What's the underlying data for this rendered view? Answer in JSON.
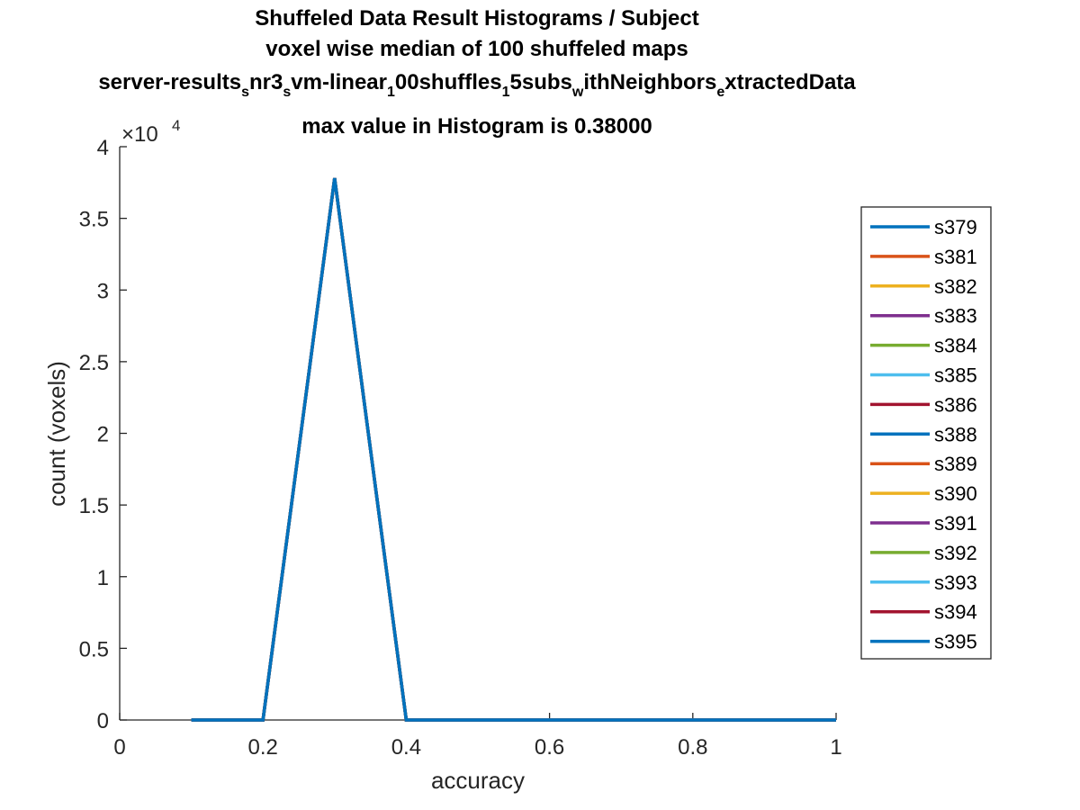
{
  "chart_data": {
    "type": "line",
    "title_lines": [
      "Shuffeled Data Result Histograms / Subject",
      "voxel wise median of 100 shuffeled maps"
    ],
    "title_line3_segments": [
      {
        "text": "server-results",
        "sub": false
      },
      {
        "text": "s",
        "sub": true
      },
      {
        "text": "nr3",
        "sub": false
      },
      {
        "text": "s",
        "sub": true
      },
      {
        "text": "vm-linear",
        "sub": false
      },
      {
        "text": "1",
        "sub": true
      },
      {
        "text": "00shuffles",
        "sub": false
      },
      {
        "text": "1",
        "sub": true
      },
      {
        "text": "5subs",
        "sub": false
      },
      {
        "text": "w",
        "sub": true
      },
      {
        "text": "ithNeighbors",
        "sub": false
      },
      {
        "text": "e",
        "sub": true
      },
      {
        "text": "xtractedData",
        "sub": false
      }
    ],
    "title_line4": "max value in Histogram is 0.38000",
    "xlabel": "accuracy",
    "ylabel": "count (voxels)",
    "y_exponent_base": "×10",
    "y_exponent_power": "4",
    "xlim": [
      0,
      1
    ],
    "ylim": [
      0,
      40000
    ],
    "xticks": [
      0,
      0.2,
      0.4,
      0.6,
      0.8,
      1
    ],
    "xtick_labels": [
      "0",
      "0.2",
      "0.4",
      "0.6",
      "0.8",
      "1"
    ],
    "yticks": [
      0,
      5000,
      10000,
      15000,
      20000,
      25000,
      30000,
      35000,
      40000
    ],
    "ytick_labels": [
      "0",
      "0.5",
      "1",
      "1.5",
      "2",
      "2.5",
      "3",
      "3.5",
      "4"
    ],
    "grid": false,
    "legend_position": "right",
    "x": [
      0.1,
      0.2,
      0.3,
      0.4,
      0.5,
      0.6,
      0.7,
      0.8,
      0.9,
      1.0
    ],
    "series": [
      {
        "name": "s379",
        "color": "#0072BD",
        "values": [
          0,
          0,
          37800,
          0,
          0,
          0,
          0,
          0,
          0,
          0
        ]
      },
      {
        "name": "s381",
        "color": "#D95319",
        "values": [
          0,
          0,
          37800,
          0,
          0,
          0,
          0,
          0,
          0,
          0
        ]
      },
      {
        "name": "s382",
        "color": "#EDB120",
        "values": [
          0,
          0,
          37800,
          0,
          0,
          0,
          0,
          0,
          0,
          0
        ]
      },
      {
        "name": "s383",
        "color": "#7E2F8E",
        "values": [
          0,
          0,
          37800,
          0,
          0,
          0,
          0,
          0,
          0,
          0
        ]
      },
      {
        "name": "s384",
        "color": "#77AC30",
        "values": [
          0,
          0,
          37800,
          0,
          0,
          0,
          0,
          0,
          0,
          0
        ]
      },
      {
        "name": "s385",
        "color": "#4DBEEE",
        "values": [
          0,
          0,
          37800,
          0,
          0,
          0,
          0,
          0,
          0,
          0
        ]
      },
      {
        "name": "s386",
        "color": "#A2142F",
        "values": [
          0,
          0,
          37800,
          0,
          0,
          0,
          0,
          0,
          0,
          0
        ]
      },
      {
        "name": "s388",
        "color": "#0072BD",
        "values": [
          0,
          0,
          37800,
          0,
          0,
          0,
          0,
          0,
          0,
          0
        ]
      },
      {
        "name": "s389",
        "color": "#D95319",
        "values": [
          0,
          0,
          37800,
          0,
          0,
          0,
          0,
          0,
          0,
          0
        ]
      },
      {
        "name": "s390",
        "color": "#EDB120",
        "values": [
          0,
          0,
          37800,
          0,
          0,
          0,
          0,
          0,
          0,
          0
        ]
      },
      {
        "name": "s391",
        "color": "#7E2F8E",
        "values": [
          0,
          0,
          37800,
          0,
          0,
          0,
          0,
          0,
          0,
          0
        ]
      },
      {
        "name": "s392",
        "color": "#77AC30",
        "values": [
          0,
          0,
          37800,
          0,
          0,
          0,
          0,
          0,
          0,
          0
        ]
      },
      {
        "name": "s393",
        "color": "#4DBEEE",
        "values": [
          0,
          0,
          37800,
          0,
          0,
          0,
          0,
          0,
          0,
          0
        ]
      },
      {
        "name": "s394",
        "color": "#A2142F",
        "values": [
          0,
          0,
          37800,
          0,
          0,
          0,
          0,
          0,
          0,
          0
        ]
      },
      {
        "name": "s395",
        "color": "#0072BD",
        "values": [
          0,
          0,
          37800,
          0,
          0,
          0,
          0,
          0,
          0,
          0
        ]
      }
    ]
  }
}
